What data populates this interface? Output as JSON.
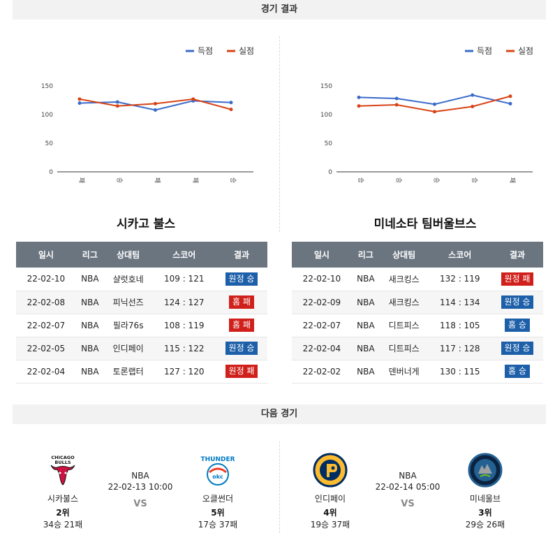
{
  "headers": {
    "results": "경기 결과",
    "next": "다음 경기"
  },
  "legend": {
    "scored": "득점",
    "conceded": "실점"
  },
  "colors": {
    "scored": "#3a6bc9",
    "conceded": "#d84315",
    "win": "#1d5fa8",
    "loss": "#d0201b"
  },
  "table_headers": [
    "일시",
    "리그",
    "상대팀",
    "스코어",
    "결과"
  ],
  "chart_data": [
    {
      "type": "line",
      "title": "",
      "categories": [
        "패",
        "승",
        "패",
        "패",
        "승"
      ],
      "series": [
        {
          "name": "득점",
          "values": [
            120,
            122,
            108,
            124,
            121
          ]
        },
        {
          "name": "실점",
          "values": [
            127,
            115,
            119,
            127,
            109
          ]
        }
      ],
      "ylim": [
        0,
        150
      ],
      "yticks": [
        "0",
        "50",
        "100",
        "150"
      ],
      "legend_position": "top-right",
      "grid": false
    },
    {
      "type": "line",
      "title": "",
      "categories": [
        "승",
        "승",
        "승",
        "승",
        "패"
      ],
      "series": [
        {
          "name": "득점",
          "values": [
            130,
            128,
            118,
            134,
            119
          ]
        },
        {
          "name": "실점",
          "values": [
            115,
            117,
            105,
            114,
            132
          ]
        }
      ],
      "ylim": [
        0,
        150
      ],
      "yticks": [
        "0",
        "50",
        "100",
        "150"
      ],
      "legend_position": "top-right",
      "grid": false
    }
  ],
  "teams": [
    {
      "name": "시카고 불스",
      "games": [
        {
          "date": "22-02-10",
          "league": "NBA",
          "opponent": "샬럿호네",
          "score": "109 : 121",
          "result": "원정 승",
          "win": true
        },
        {
          "date": "22-02-08",
          "league": "NBA",
          "opponent": "피닉선즈",
          "score": "124 : 127",
          "result": "홈 패",
          "win": false
        },
        {
          "date": "22-02-07",
          "league": "NBA",
          "opponent": "필라76s",
          "score": "108 : 119",
          "result": "홈 패",
          "win": false
        },
        {
          "date": "22-02-05",
          "league": "NBA",
          "opponent": "인디페이",
          "score": "115 : 122",
          "result": "원정 승",
          "win": true
        },
        {
          "date": "22-02-04",
          "league": "NBA",
          "opponent": "토론랩터",
          "score": "127 : 120",
          "result": "원정 패",
          "win": false
        }
      ]
    },
    {
      "name": "미네소타 팀버울브스",
      "games": [
        {
          "date": "22-02-10",
          "league": "NBA",
          "opponent": "새크킹스",
          "score": "132 : 119",
          "result": "원정 패",
          "win": false
        },
        {
          "date": "22-02-09",
          "league": "NBA",
          "opponent": "새크킹스",
          "score": "114 : 134",
          "result": "원정 승",
          "win": true
        },
        {
          "date": "22-02-07",
          "league": "NBA",
          "opponent": "디트피스",
          "score": "118 : 105",
          "result": "홈 승",
          "win": true
        },
        {
          "date": "22-02-04",
          "league": "NBA",
          "opponent": "디트피스",
          "score": "117 : 128",
          "result": "원정 승",
          "win": true
        },
        {
          "date": "22-02-02",
          "league": "NBA",
          "opponent": "덴버너게",
          "score": "130 : 115",
          "result": "홈 승",
          "win": true
        }
      ]
    }
  ],
  "next_games": [
    {
      "league": "NBA",
      "datetime": "22-02-13 10:00",
      "vs": "VS",
      "home": {
        "name": "시카불스",
        "rank": "2위",
        "record": "34승 21패",
        "logo": "chicago-bulls-logo",
        "logo_text": "CHICAGO BULLS"
      },
      "away": {
        "name": "오클썬더",
        "rank": "5위",
        "record": "17승 37패",
        "logo": "okc-thunder-logo",
        "logo_text": "THUNDER"
      }
    },
    {
      "league": "NBA",
      "datetime": "22-02-14 05:00",
      "vs": "VS",
      "home": {
        "name": "인디페이",
        "rank": "4위",
        "record": "19승 37패",
        "logo": "indiana-pacers-logo",
        "logo_text": "P"
      },
      "away": {
        "name": "미네울브",
        "rank": "3위",
        "record": "29승 26패",
        "logo": "minnesota-timberwolves-logo",
        "logo_text": ""
      }
    }
  ]
}
